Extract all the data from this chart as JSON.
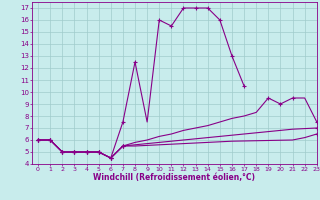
{
  "background_color": "#c8ecec",
  "grid_color": "#a0cccc",
  "line_color": "#880088",
  "xlim": [
    -0.5,
    23
  ],
  "ylim": [
    4,
    17.5
  ],
  "xticks": [
    0,
    1,
    2,
    3,
    4,
    5,
    6,
    7,
    8,
    9,
    10,
    11,
    12,
    13,
    14,
    15,
    16,
    17,
    18,
    19,
    20,
    21,
    22,
    23
  ],
  "yticks": [
    4,
    5,
    6,
    7,
    8,
    9,
    10,
    11,
    12,
    13,
    14,
    15,
    16,
    17
  ],
  "xlabel": "Windchill (Refroidissement éolien,°C)",
  "curves": [
    {
      "x": [
        0,
        1,
        2,
        3,
        4,
        5,
        6,
        7,
        8,
        9,
        10,
        11,
        12,
        13,
        14,
        15,
        16,
        17
      ],
      "y": [
        6,
        6,
        5,
        5,
        5,
        5,
        4.5,
        7.5,
        12.5,
        7.5,
        16,
        15.5,
        17,
        17,
        17,
        16,
        13,
        10.5
      ]
    },
    {
      "x": [
        0,
        1,
        2,
        3,
        4,
        5,
        6,
        7,
        8,
        9,
        10,
        11,
        12,
        13,
        14,
        15,
        16,
        17,
        18,
        19,
        20,
        21,
        22,
        23
      ],
      "y": [
        6,
        6,
        5,
        5,
        5,
        5,
        4.5,
        5.5,
        5.8,
        6.0,
        6.3,
        6.5,
        6.8,
        7.0,
        7.2,
        7.5,
        7.8,
        8.0,
        8.3,
        9.5,
        9.0,
        9.5,
        9.5,
        7.5
      ]
    },
    {
      "x": [
        0,
        1,
        2,
        3,
        4,
        5,
        6,
        7,
        8,
        9,
        10,
        11,
        12,
        13,
        14,
        15,
        16,
        17,
        18,
        19,
        20,
        21,
        22,
        23
      ],
      "y": [
        6,
        6,
        5,
        5,
        5,
        5,
        4.5,
        5.5,
        5.6,
        5.7,
        5.8,
        5.9,
        6.0,
        6.1,
        6.2,
        6.3,
        6.4,
        6.5,
        6.6,
        6.7,
        6.8,
        6.9,
        6.95,
        7.0
      ]
    },
    {
      "x": [
        0,
        1,
        2,
        3,
        4,
        5,
        6,
        7,
        8,
        9,
        10,
        11,
        12,
        13,
        14,
        15,
        16,
        17,
        18,
        19,
        20,
        21,
        22,
        23
      ],
      "y": [
        6,
        6,
        5,
        5,
        5,
        5,
        4.5,
        5.5,
        5.5,
        5.55,
        5.6,
        5.65,
        5.7,
        5.75,
        5.8,
        5.85,
        5.9,
        5.92,
        5.94,
        5.96,
        5.98,
        6.0,
        6.2,
        6.5
      ]
    }
  ],
  "marker_curves": [
    {
      "x": [
        0,
        1,
        2,
        3,
        4,
        5,
        6,
        7,
        8,
        10,
        11,
        12,
        13,
        14,
        15,
        16,
        17
      ],
      "y": [
        6,
        6,
        5,
        5,
        5,
        5,
        4.5,
        7.5,
        12.5,
        16,
        15.5,
        17,
        17,
        17,
        16,
        13,
        10.5
      ]
    },
    {
      "x": [
        0,
        1,
        2,
        3,
        4,
        5,
        6,
        7,
        19,
        20,
        21,
        23
      ],
      "y": [
        6,
        6,
        5,
        5,
        5,
        5,
        4.5,
        5.5,
        9.5,
        9.0,
        9.5,
        7.5
      ]
    },
    {
      "x": [
        0,
        1,
        2,
        3,
        4,
        5,
        6,
        7,
        23
      ],
      "y": [
        6,
        6,
        5,
        5,
        5,
        5,
        4.5,
        5.5,
        7.0
      ]
    },
    {
      "x": [
        0,
        1,
        2,
        3,
        4,
        5,
        6,
        7,
        23
      ],
      "y": [
        6,
        6,
        5,
        5,
        5,
        5,
        4.5,
        5.5,
        6.5
      ]
    }
  ]
}
